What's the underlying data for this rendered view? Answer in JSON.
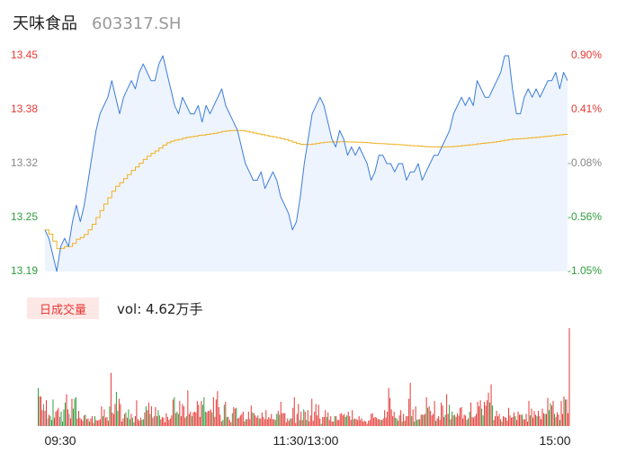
{
  "header": {
    "name": "天味食品",
    "code": "603317.SH"
  },
  "volume_panel": {
    "badge": "日成交量",
    "label": "vol: 4.62万手"
  },
  "colors": {
    "price": "#3b7ddd",
    "avg": "#f0b020",
    "up": "#e53935",
    "down": "#2e9e3e",
    "neutral": "#888888"
  },
  "chart_data": [
    {
      "type": "line",
      "title": "",
      "price_axis": {
        "ticks": [
          "13.45",
          "13.38",
          "13.32",
          "13.25",
          "13.19"
        ],
        "range": [
          13.19,
          13.45
        ]
      },
      "pct_axis": {
        "ticks": [
          "0.90%",
          "0.41%",
          "-0.08%",
          "-0.56%",
          "-1.05%"
        ]
      },
      "x_ticks": [
        "09:30",
        "11:30/13:00",
        "15:00"
      ],
      "series": [
        {
          "values": [
            13.24,
            13.23,
            13.21,
            13.19,
            13.22,
            13.23,
            13.22,
            13.25,
            13.27,
            13.25,
            13.27,
            13.3,
            13.33,
            13.36,
            13.38,
            13.39,
            13.4,
            13.42,
            13.4,
            13.38,
            13.4,
            13.41,
            13.42,
            13.41,
            13.43,
            13.44,
            13.43,
            13.42,
            13.42,
            13.44,
            13.45,
            13.43,
            13.41,
            13.39,
            13.38,
            13.4,
            13.39,
            13.38,
            13.38,
            13.39,
            13.37,
            13.39,
            13.38,
            13.39,
            13.4,
            13.41,
            13.39,
            13.38,
            13.37,
            13.36,
            13.34,
            13.32,
            13.31,
            13.3,
            13.3,
            13.31,
            13.29,
            13.3,
            13.31,
            13.3,
            13.28,
            13.27,
            13.26,
            13.24,
            13.25,
            13.28,
            13.32,
            13.35,
            13.38,
            13.39,
            13.4,
            13.39,
            13.37,
            13.35,
            13.34,
            13.36,
            13.35,
            13.33,
            13.34,
            13.33,
            13.34,
            13.33,
            13.32,
            13.3,
            13.31,
            13.33,
            13.33,
            13.32,
            13.32,
            13.31,
            13.32,
            13.32,
            13.3,
            13.31,
            13.31,
            13.32,
            13.3,
            13.31,
            13.32,
            13.33,
            13.33,
            13.34,
            13.35,
            13.36,
            13.38,
            13.39,
            13.4,
            13.39,
            13.4,
            13.39,
            13.42,
            13.41,
            13.4,
            13.4,
            13.41,
            13.42,
            13.43,
            13.45,
            13.45,
            13.41,
            13.38,
            13.38,
            13.4,
            13.41,
            13.4,
            13.41,
            13.4,
            13.41,
            13.42,
            13.42,
            13.43,
            13.41,
            13.43,
            13.42
          ]
        }
      ]
    },
    {
      "type": "bar",
      "values": [
        5,
        3.9,
        3.9,
        2.1,
        2.9,
        2,
        3.4,
        1,
        1.5,
        1.3,
        0.8,
        3.5,
        1.1,
        1.9,
        2.1,
        2.4,
        1.2,
        1.9,
        0.6,
        2.2,
        3.1,
        4.2,
        2.2,
        1.6,
        1,
        3.6,
        2.3,
        3.6,
        3.8,
        1,
        2,
        1.1,
        0.9,
        0.7,
        1.4,
        1.5,
        0.9,
        1,
        0.6,
        1,
        1.3,
        0.4,
        1.3,
        0.8,
        0.7,
        0.8,
        0.9,
        2.6,
        1.3,
        2.2,
        1.1,
        1.2,
        0.7,
        2.6,
        7,
        1.8,
        1.6,
        2.9,
        4.5,
        2,
        3.6,
        2.9,
        0.6,
        1,
        1.6,
        1.8,
        1.1,
        2.2,
        0.9,
        1.6,
        1.1,
        0.5,
        1.3,
        3.4,
        0.9,
        0.7,
        1.1,
        0.8,
        0.9,
        1.8,
        2.6,
        2.1,
        3.1,
        1.6,
        2.6,
        1.1,
        1.3,
        2.5,
        1.3,
        2.1,
        1.4,
        0.9,
        1.2,
        1.1,
        0.5,
        1.7,
        1.2,
        0.8,
        1,
        1.4,
        3.5,
        3.8,
        1.7,
        1.9,
        1.6,
        3.3,
        1.3,
        2.9,
        2.6,
        1.1,
        1.3,
        4.7,
        1.6,
        1.9,
        1.3,
        1.8,
        1.9,
        1.8,
        3.3,
        2.8,
        1.2,
        3.3,
        2.8,
        3.8,
        1.9,
        1.8,
        2,
        2,
        2.2,
        1.8,
        3.8,
        1.2,
        3.5,
        4.6,
        2.5,
        1.5,
        0.6,
        0.8,
        2.8,
        3.2,
        1.2,
        1.2,
        0.8,
        0.5,
        1.7,
        2.5,
        2.3,
        2.4,
        1,
        1.1,
        1.4,
        1.6,
        1.9,
        0.6,
        0.9,
        0.9,
        1.9,
        0.9,
        2.7,
        1.8,
        1.7,
        1.4,
        1.1,
        1.4,
        1,
        1,
        1.8,
        1.2,
        0.9,
        2.1,
        0.9,
        1.2,
        1,
        1.6,
        0.9,
        0.9,
        0.8,
        1.6,
        2,
        1.5,
        3.2,
        1.7,
        1.7,
        1.7,
        0.5,
        1,
        0.7,
        1,
        1,
        2.4,
        3.8,
        0.4,
        1.6,
        2.9,
        0.8,
        1.9,
        0.8,
        2.2,
        1.9,
        0.8,
        2.1,
        0.6,
        1.4,
        3.6,
        0.7,
        1.9,
        2.9,
        1.4,
        2.8,
        1,
        0.3,
        1.2,
        1.2,
        2.1,
        1.2,
        1.8,
        0.8,
        1.3,
        0.6,
        0.6,
        1.3,
        1.3,
        0.8,
        0.8,
        1.6,
        1.7,
        1.4,
        1.6,
        1.2,
        1.4,
        1.9,
        1.3,
        0.8,
        2.1,
        0.9,
        1,
        0.9,
        0.8,
        1.3,
        0.8,
        1,
        0.6,
        0.7,
        0.6,
        0.3,
        0.7,
        0.8,
        1.6,
        1.7,
        1.1,
        1.2,
        1.1,
        0.9,
        0.9,
        0.8,
        0.8,
        1,
        2.1,
        1.1,
        1.9,
        5,
        3.7,
        2.2,
        1.3,
        1.9,
        1.1,
        1,
        0.7,
        1.4,
        2.1,
        0.6,
        1.6,
        0.7,
        1.3,
        1.3,
        3.6,
        5.7,
        1.3,
        2.2,
        0.6,
        2.6,
        0.8,
        0.9,
        0.9,
        1.5,
        1.5,
        1.5,
        1.6,
        3.8,
        2.4,
        2.6,
        2,
        1.4,
        1.6,
        3.3,
        0.7,
        1,
        1.3,
        0.8,
        3.1,
        2.7,
        1.2,
        1.5,
        4.2,
        1.6,
        2.8,
        0.9,
        1.9,
        1.4,
        1.5,
        1.2,
        1.7,
        1.4,
        2.4,
        2.5,
        1,
        1.5,
        1.4,
        0.8,
        1,
        1.9,
        3.1,
        1.2,
        1.1,
        1.3,
        1.6,
        3.2,
        2.6,
        3.4,
        2.3,
        1.4,
        3.2,
        2.7,
        3.4,
        4.4,
        3.1,
        5.5,
        2.7,
        0.8,
        1.3,
        2,
        1.3,
        1.6,
        0.9,
        0.6,
        1.3,
        1.2,
        1.1,
        0.7,
        2.4,
        1.4,
        1.1,
        1.2,
        1.8,
        1.3,
        0.8,
        1.9,
        1.5,
        1.5,
        1.5,
        0.9,
        0.9,
        1.6,
        0.6,
        3.3,
        1.4,
        2.3,
        1.1,
        2,
        1.5,
        1.3,
        2,
        1.3,
        0.9,
        2.3,
        1.7,
        1.6,
        1.6,
        3.7,
        2.1,
        3,
        2.7,
        3.3,
        1.6,
        1.2,
        1.8,
        1.5,
        0.8,
        3.3,
        1.6,
        3.9,
        3.5,
        3.5,
        1.7,
        12.9
      ],
      "direction": [
        "d",
        "u",
        "u",
        "u",
        "n",
        "u",
        "u",
        "n",
        "u",
        "d",
        "d",
        "d",
        "u",
        "u",
        "u",
        "u",
        "n",
        "d",
        "d",
        "d",
        "d",
        "u",
        "u",
        "n",
        "u",
        "u",
        "d",
        "d",
        "d",
        "u",
        "u",
        "u",
        "u",
        "u",
        "u",
        "d",
        "u",
        "u",
        "d",
        "u",
        "u",
        "u",
        "d",
        "u",
        "u",
        "u",
        "u",
        "u",
        "d",
        "u",
        "u",
        "u",
        "u",
        "d",
        "u",
        "u",
        "u",
        "u",
        "d",
        "d",
        "u",
        "u",
        "u",
        "u",
        "u",
        "d",
        "u",
        "d",
        "d",
        "u",
        "d",
        "d",
        "u",
        "u",
        "u",
        "u",
        "u",
        "d",
        "d",
        "u",
        "d",
        "u",
        "u",
        "d",
        "u",
        "u",
        "n",
        "u",
        "u",
        "d",
        "d",
        "u",
        "u",
        "u",
        "u",
        "u",
        "u",
        "u",
        "u",
        "u",
        "u",
        "d",
        "u",
        "d",
        "d",
        "u",
        "u",
        "u",
        "u",
        "u",
        "d",
        "u",
        "u",
        "u",
        "d",
        "u",
        "u",
        "u",
        "u",
        "u",
        "u",
        "u",
        "d",
        "d",
        "d",
        "u",
        "u",
        "u",
        "u",
        "d",
        "u",
        "u",
        "u",
        "u",
        "u",
        "u",
        "u",
        "d",
        "d",
        "u",
        "d",
        "u",
        "u",
        "u",
        "d",
        "u",
        "u",
        "d",
        "u",
        "u",
        "u",
        "u",
        "u",
        "u",
        "d",
        "u",
        "u",
        "u",
        "u",
        "d",
        "u",
        "u",
        "u",
        "u",
        "d",
        "u",
        "u",
        "u",
        "u",
        "u",
        "u",
        "u",
        "u",
        "u",
        "u",
        "u",
        "d",
        "d",
        "u",
        "d",
        "u",
        "u",
        "u",
        "u",
        "u",
        "u",
        "u",
        "d",
        "u",
        "u",
        "u",
        "u",
        "u",
        "u",
        "d",
        "u",
        "u",
        "d",
        "u",
        "d",
        "u",
        "u",
        "u",
        "u",
        "u",
        "u",
        "u",
        "u",
        "u",
        "u",
        "d",
        "u",
        "u",
        "u",
        "d",
        "u",
        "u",
        "u",
        "u",
        "u",
        "d",
        "u",
        "u",
        "u",
        "u",
        "u",
        "u",
        "u",
        "d",
        "d",
        "u",
        "u",
        "u",
        "u",
        "d",
        "u",
        "u",
        "u",
        "u",
        "u",
        "u",
        "u",
        "u",
        "u",
        "u",
        "u",
        "u",
        "u",
        "u",
        "u",
        "u",
        "u",
        "u",
        "u",
        "d",
        "u",
        "u",
        "u",
        "u",
        "u",
        "u",
        "u",
        "u",
        "u",
        "u",
        "d",
        "d",
        "u",
        "u",
        "u",
        "d",
        "u",
        "u",
        "u",
        "u",
        "u",
        "u",
        "d",
        "u",
        "d",
        "u",
        "d",
        "d",
        "u",
        "u",
        "u",
        "d",
        "u",
        "u",
        "d",
        "u",
        "u",
        "u",
        "u",
        "u",
        "d",
        "u",
        "u",
        "u",
        "u",
        "u",
        "u",
        "d",
        "u",
        "u",
        "d",
        "u",
        "d",
        "u",
        "d",
        "u",
        "u",
        "u",
        "u",
        "u",
        "u",
        "u",
        "u",
        "d",
        "u",
        "d",
        "u",
        "u",
        "u",
        "u",
        "u",
        "u",
        "u",
        "u",
        "d",
        "d",
        "u",
        "u",
        "u",
        "u",
        "d",
        "u",
        "d",
        "u",
        "u",
        "u",
        "u",
        "u",
        "u",
        "d",
        "u",
        "u",
        "u",
        "u",
        "u",
        "u",
        "u",
        "u",
        "u",
        "d",
        "u",
        "u",
        "u",
        "u",
        "d",
        "u",
        "u",
        "u",
        "u",
        "u",
        "d",
        "u",
        "u",
        "u",
        "u",
        "d",
        "u",
        "u",
        "u",
        "u",
        "u",
        "d",
        "u",
        "u",
        "d",
        "d",
        "u",
        "u",
        "d",
        "u",
        "u",
        "u",
        "d",
        "u",
        "u",
        "u",
        "d",
        "u",
        "u",
        "u",
        "u",
        "u",
        "u",
        "d",
        "u",
        "u",
        "u",
        "u",
        "d",
        "u",
        "u",
        "u",
        "d",
        "u",
        "u",
        "u",
        "u",
        "d",
        "u",
        "u",
        "d",
        "u"
      ]
    }
  ]
}
